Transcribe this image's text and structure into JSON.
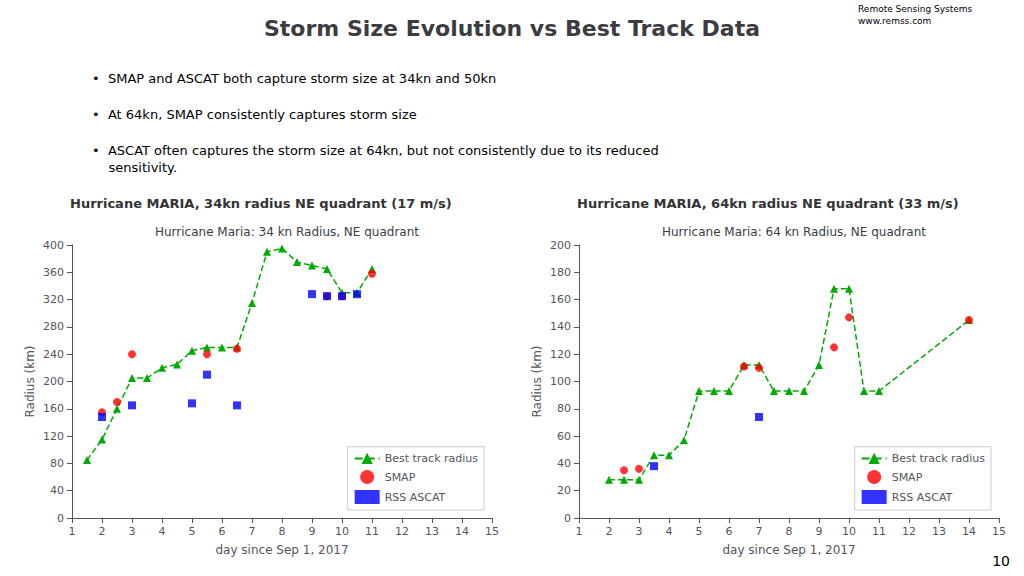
{
  "title": "Storm Size Evolution vs Best Track Data",
  "annotations": [
    "Remote Sensing Systems",
    "www.remss.com",
    "•  SMAP and ASCAT both capture storm size at 34kn and 50kn",
    "•  At 64kn, SMAP consistently captures storm size",
    "•  ASCAT often captures the storm size at 64kn, but not consistently due to its reduced\n    sensitivity.",
    "10"
  ],
  "chart_data": [
    {
      "type": "scatter",
      "title": "Hurricane Maria: 34 kn Radius, NE quadrant",
      "subtitle": "Hurricane MARIA, 34kn radius NE quadrant (17 m/s)",
      "xlabel": "day since Sep 1, 2017",
      "ylabel": "Radius (km)",
      "xlim": [
        1,
        15
      ],
      "xticks": [
        1,
        2,
        3,
        4,
        5,
        6,
        7,
        8,
        9,
        10,
        11,
        12,
        13,
        14,
        15
      ],
      "ylim": [
        0,
        400
      ],
      "yticks": [
        0,
        40,
        80,
        120,
        160,
        200,
        240,
        280,
        320,
        360,
        400
      ],
      "grid": false,
      "legend": "lower right",
      "series": [
        {
          "name": "Best track radius",
          "type": "line",
          "color": "#00AA00",
          "line_style": "dashed",
          "marker": "triangle",
          "x": [
            1.5,
            2.0,
            2.5,
            3.0,
            3.5,
            4.0,
            4.5,
            5.0,
            5.5,
            6.0,
            6.5,
            7.0,
            7.5,
            8.0,
            8.5,
            9.0,
            9.5,
            10.0,
            10.5,
            11.0
          ],
          "values": [
            85,
            115,
            160,
            205,
            205,
            220,
            225,
            245,
            250,
            250,
            250,
            315,
            390,
            395,
            375,
            370,
            365,
            330,
            330,
            365
          ]
        },
        {
          "name": "SMAP",
          "type": "scatter",
          "color": "#FF0000",
          "marker": "circle",
          "x": [
            2.0,
            2.5,
            3.0,
            5.5,
            6.5,
            9.5,
            10.0,
            11.0
          ],
          "values": [
            155,
            170,
            240,
            240,
            248,
            325,
            325,
            358
          ]
        },
        {
          "name": "RSS ASCAT",
          "type": "scatter",
          "color": "#0000FF",
          "marker": "square",
          "x": [
            2.0,
            3.0,
            5.0,
            5.5,
            6.5,
            9.0,
            9.5,
            10.0,
            10.5
          ],
          "values": [
            148,
            165,
            168,
            210,
            165,
            328,
            325,
            325,
            328
          ]
        }
      ]
    },
    {
      "type": "scatter",
      "title": "Hurricane Maria: 64 kn Radius, NE quadrant",
      "subtitle": "Hurricane MARIA, 64kn radius NE quadrant (33 m/s)",
      "xlabel": "day since Sep 1, 2017",
      "ylabel": "Radius (km)",
      "xlim": [
        1,
        15
      ],
      "xticks": [
        1,
        2,
        3,
        4,
        5,
        6,
        7,
        8,
        9,
        10,
        11,
        12,
        13,
        14,
        15
      ],
      "ylim": [
        0,
        200
      ],
      "yticks": [
        0,
        20,
        40,
        60,
        80,
        100,
        120,
        140,
        160,
        180,
        200
      ],
      "grid": false,
      "legend": "lower right",
      "series": [
        {
          "name": "Best track radius",
          "type": "line",
          "color": "#00AA00",
          "line_style": "dashed",
          "marker": "triangle",
          "x": [
            2.0,
            2.5,
            3.0,
            3.5,
            4.0,
            4.5,
            5.0,
            5.5,
            6.0,
            6.5,
            7.0,
            7.5,
            8.0,
            8.5,
            9.0,
            9.5,
            10.0,
            10.5,
            11.0,
            14.0
          ],
          "values": [
            28,
            28,
            28,
            46,
            46,
            57,
            93,
            93,
            93,
            112,
            112,
            93,
            93,
            93,
            112,
            168,
            168,
            93,
            93,
            145
          ]
        },
        {
          "name": "SMAP",
          "type": "scatter",
          "color": "#FF0000",
          "marker": "circle",
          "x": [
            2.5,
            3.0,
            6.5,
            7.0,
            9.5,
            10.0,
            14.0
          ],
          "values": [
            35,
            36,
            111,
            110,
            125,
            147,
            145
          ]
        },
        {
          "name": "RSS ASCAT",
          "type": "scatter",
          "color": "#0000FF",
          "marker": "square",
          "x": [
            3.5,
            7.0
          ],
          "values": [
            38,
            74
          ]
        }
      ]
    }
  ]
}
